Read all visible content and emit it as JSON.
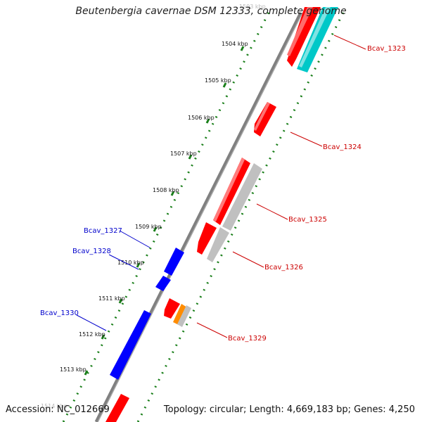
{
  "header": {
    "title": "Beutenbergia cavernae DSM 12333, complete genome"
  },
  "footer": {
    "accession": "Accession: NC_012669",
    "summary": "Topology: circular; Length: 4,669,183 bp; Genes: 4,250"
  },
  "colors": {
    "forward_gene": "#ff0000",
    "reverse_gene": "#0000ff",
    "pseudo_gene": "#c0c0c0",
    "trna_gene": "#ff8c00",
    "cyan_gene": "#00c8c8",
    "backbone": "#808080",
    "dotted_ruler": "#1a7f1a",
    "forward_label": "#cc0000",
    "reverse_label": "#0000cc"
  },
  "ruler": {
    "ticks": [
      "1503 kbp",
      "1504 kbp",
      "1505 kbp",
      "1506 kbp",
      "1507 kbp",
      "1508 kbp",
      "1509 kbp",
      "1510 kbp",
      "1511 kbp",
      "1512 kbp",
      "1513 kbp",
      "1514 kbp"
    ]
  },
  "gene_labels": [
    {
      "text": "Bcav_1323",
      "strand": "forward"
    },
    {
      "text": "Bcav_1324",
      "strand": "forward"
    },
    {
      "text": "Bcav_1325",
      "strand": "forward"
    },
    {
      "text": "Bcav_1326",
      "strand": "forward"
    },
    {
      "text": "Bcav_1327",
      "strand": "reverse"
    },
    {
      "text": "Bcav_1328",
      "strand": "reverse"
    },
    {
      "text": "Bcav_1329",
      "strand": "forward"
    },
    {
      "text": "Bcav_1330",
      "strand": "reverse"
    }
  ]
}
